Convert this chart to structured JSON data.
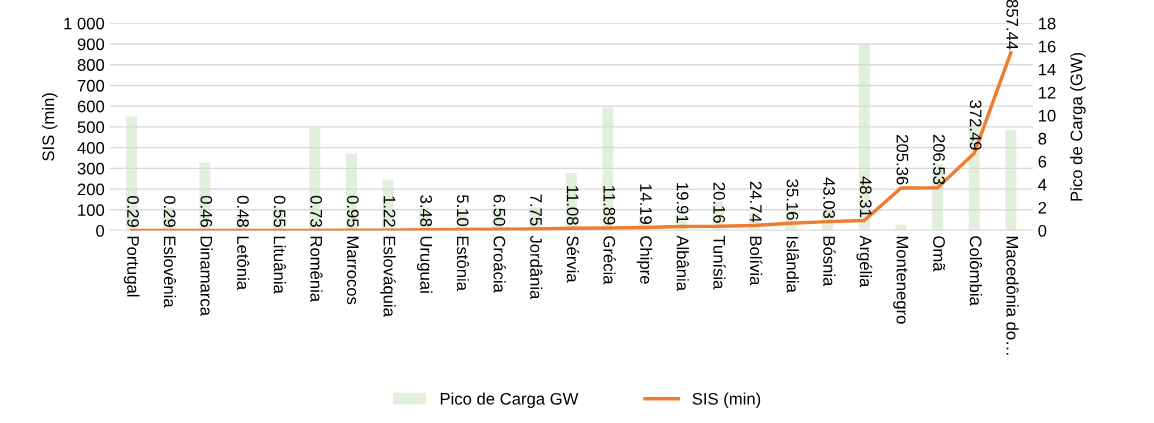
{
  "chart_data": {
    "type": "bar",
    "ylabel": "SIS (min)",
    "y2label": "Pico de Carga (GW)",
    "categories": [
      "Portugal",
      "Eslovênia",
      "Dinamarca",
      "Letônia",
      "Lituânia",
      "Romênia",
      "Marrocos",
      "Eslováquia",
      "Uruguai",
      "Estônia",
      "Croácia",
      "Jordânia",
      "Sérvia",
      "Grécia",
      "Chipre",
      "Albânia",
      "Tunísia",
      "Bolívia",
      "Islândia",
      "Bósnia",
      "Argélia",
      "Montenegro",
      "Omã",
      "Colômbia",
      "Macedônia do…"
    ],
    "series": [
      {
        "name": "Pico de Carga GW",
        "axis": "y2",
        "color": "#e2efda",
        "values": [
          9.9,
          2.0,
          5.9,
          1.2,
          2.0,
          8.9,
          6.7,
          4.4,
          2.0,
          1.5,
          2.0,
          2.0,
          5.0,
          10.7,
          1.1,
          1.3,
          2.5,
          1.5,
          2.3,
          1.9,
          16.2,
          0.5,
          5.8,
          9.5,
          8.7
        ]
      },
      {
        "name": "SIS (min)",
        "type": "line",
        "color": "#ed7d31",
        "values": [
          0.29,
          0.29,
          0.46,
          0.48,
          0.55,
          0.73,
          0.95,
          1.22,
          3.48,
          5.1,
          6.5,
          7.75,
          11.08,
          11.89,
          14.19,
          19.91,
          20.16,
          24.74,
          35.16,
          43.03,
          48.31,
          205.36,
          206.53,
          372.49,
          857.44
        ],
        "value_labels": [
          "0.29",
          "0.29",
          "0.46",
          "0.48",
          "0.55",
          "0.73",
          "0.95",
          "1.22",
          "3.48",
          "5.10",
          "6.50",
          "7.75",
          "11.08",
          "11.89",
          "14.19",
          "19.91",
          "20.16",
          "24.74",
          "35.16",
          "43.03",
          "48.31",
          "205.36",
          "206.53",
          "372.49",
          "857.44"
        ]
      }
    ],
    "ylim": [
      0,
      1000
    ],
    "yticks": [
      0,
      100,
      200,
      300,
      400,
      500,
      600,
      700,
      800,
      900,
      {
        "value": 1000,
        "label": "1 000"
      }
    ],
    "y2lim": [
      0,
      18
    ],
    "y2ticks": [
      0,
      2,
      4,
      6,
      8,
      10,
      12,
      14,
      16,
      18
    ],
    "grid": "y",
    "legend": "bottom",
    "marker": "none"
  }
}
